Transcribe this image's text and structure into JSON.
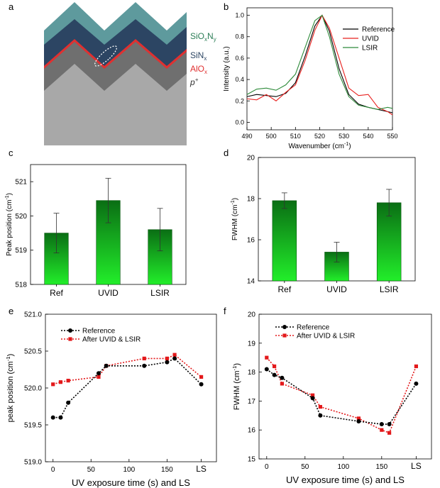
{
  "figure": {
    "panel_letters": [
      "a",
      "b",
      "c",
      "d",
      "e",
      "f"
    ],
    "colors": {
      "reference": "#000000",
      "uvid": "#e8201e",
      "lsir": "#2e8b3a",
      "after": "#e3191b",
      "sioxny": "#5e9a9d",
      "sinx": "#2c4563",
      "alox": "#e03030",
      "p_layer": "#6f6f6f",
      "substrate": "#a8a8a8",
      "bar_top": "#0a6e14",
      "bar_bottom": "#22ee2a"
    }
  },
  "schematic": {
    "layer_labels": [
      {
        "main": "SiO",
        "sub1": "x",
        "mid": "N",
        "sub2": "y",
        "color": "#2a7d55"
      },
      {
        "main": "SiN",
        "sub1": "x",
        "mid": "",
        "sub2": "",
        "color": "#2c4563"
      },
      {
        "main": "AlO",
        "sub1": "x",
        "mid": "",
        "sub2": "",
        "color": "#e03030"
      },
      {
        "main": "p",
        "sup": "+",
        "color": "#333333"
      }
    ]
  },
  "chart_data": [
    {
      "panel": "b",
      "type": "line",
      "xlabel": "Wavenumber (cm⁻¹)",
      "ylabel": "Intensity (a.u.)",
      "xlim": [
        490,
        550
      ],
      "ylim": [
        -0.07,
        1.07
      ],
      "xticks": [
        490,
        500,
        510,
        520,
        530,
        540,
        550
      ],
      "yticks": [
        0.0,
        0.2,
        0.4,
        0.6,
        0.8,
        1.0
      ],
      "x": [
        490,
        494,
        498,
        502,
        506,
        510,
        514,
        518,
        521,
        524,
        528,
        532,
        536,
        540,
        544,
        548,
        550
      ],
      "series": [
        {
          "name": "Reference",
          "color": "#000000",
          "values": [
            0.24,
            0.26,
            0.25,
            0.24,
            0.27,
            0.37,
            0.62,
            0.9,
            1.0,
            0.85,
            0.5,
            0.26,
            0.17,
            0.14,
            0.12,
            0.1,
            0.09
          ]
        },
        {
          "name": "UVID",
          "color": "#e8201e",
          "values": [
            0.22,
            0.21,
            0.26,
            0.2,
            0.28,
            0.35,
            0.58,
            0.86,
            1.0,
            0.88,
            0.6,
            0.32,
            0.25,
            0.26,
            0.14,
            0.1,
            0.07
          ]
        },
        {
          "name": "LSIR",
          "color": "#2e8b3a",
          "values": [
            0.26,
            0.31,
            0.32,
            0.3,
            0.35,
            0.45,
            0.7,
            0.95,
            1.0,
            0.8,
            0.45,
            0.24,
            0.16,
            0.14,
            0.12,
            0.14,
            0.13
          ]
        }
      ]
    },
    {
      "panel": "c",
      "type": "bar",
      "ylabel": "Peak position (cm⁻¹)",
      "categories": [
        "Ref",
        "UVID",
        "LSIR"
      ],
      "values": [
        519.5,
        520.45,
        519.6
      ],
      "errors": [
        0.58,
        0.65,
        0.62
      ],
      "ylim": [
        518,
        521.5
      ],
      "yticks": [
        518,
        519,
        520,
        521
      ]
    },
    {
      "panel": "d",
      "type": "bar",
      "ylabel": "FWHM (cm⁻¹)",
      "categories": [
        "Ref",
        "UVID",
        "LSIR"
      ],
      "values": [
        17.9,
        15.4,
        17.8
      ],
      "errors": [
        0.38,
        0.48,
        0.65
      ],
      "ylim": [
        14,
        20
      ],
      "yticks": [
        14,
        16,
        18,
        20
      ]
    },
    {
      "panel": "e",
      "type": "line",
      "xlabel": "UV exposure time (s) and LS",
      "ylabel": "peak position (cm⁻¹)",
      "xlim": [
        -10,
        215
      ],
      "ylim": [
        519.0,
        521.0
      ],
      "xticks": [
        0,
        50,
        100,
        150
      ],
      "ls_x": 195,
      "ls_label": "LS",
      "yticks": [
        519.0,
        519.5,
        520.0,
        520.5,
        521.0
      ],
      "series": [
        {
          "name": "Reference",
          "color": "#000000",
          "x": [
            0,
            10,
            20,
            60,
            70,
            120,
            150,
            160,
            195
          ],
          "values": [
            519.6,
            519.6,
            519.8,
            520.2,
            520.3,
            520.3,
            520.35,
            520.4,
            520.05
          ]
        },
        {
          "name": "After UVID & LSIR",
          "color": "#e3191b",
          "x": [
            0,
            10,
            20,
            60,
            70,
            120,
            150,
            160,
            195
          ],
          "values": [
            520.05,
            520.08,
            520.1,
            520.15,
            520.3,
            520.4,
            520.4,
            520.45,
            520.15
          ]
        }
      ]
    },
    {
      "panel": "f",
      "type": "line",
      "xlabel": "UV exposure time (s) and LS",
      "ylabel": "FWHM (cm⁻¹)",
      "xlim": [
        -10,
        215
      ],
      "ylim": [
        15,
        20
      ],
      "xticks": [
        0,
        50,
        100,
        150
      ],
      "ls_x": 195,
      "ls_label": "LS",
      "yticks": [
        15,
        16,
        17,
        18,
        19,
        20
      ],
      "series": [
        {
          "name": "Reference",
          "color": "#000000",
          "x": [
            0,
            10,
            20,
            60,
            70,
            120,
            150,
            160,
            195
          ],
          "values": [
            18.1,
            17.9,
            17.8,
            17.1,
            16.5,
            16.3,
            16.2,
            16.2,
            17.6
          ]
        },
        {
          "name": "After UVID & LSIR",
          "color": "#e3191b",
          "x": [
            0,
            10,
            20,
            60,
            70,
            120,
            150,
            160,
            195
          ],
          "values": [
            18.5,
            18.2,
            17.6,
            17.2,
            16.8,
            16.4,
            16.0,
            15.9,
            18.2
          ]
        }
      ]
    }
  ]
}
